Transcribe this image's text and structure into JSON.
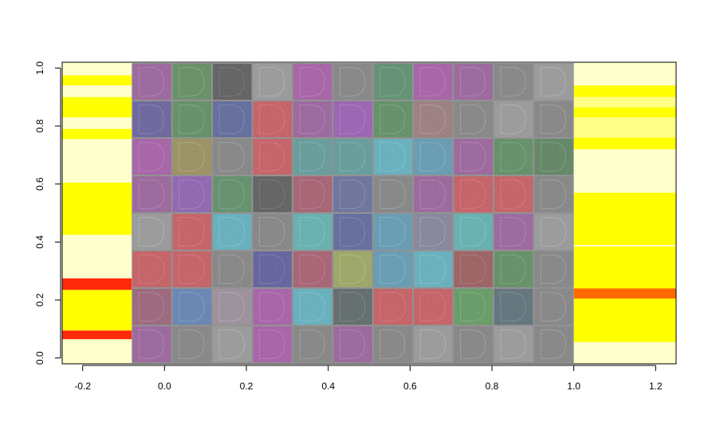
{
  "chart_data": {
    "type": "heatmap",
    "title": "",
    "xlabel": "",
    "ylabel": "",
    "xlim": [
      -0.25,
      1.25
    ],
    "ylim": [
      -0.02,
      1.02
    ],
    "x_ticks": [
      "-0.2",
      "0.0",
      "0.2",
      "0.4",
      "0.6",
      "0.8",
      "1.0",
      "1.2"
    ],
    "y_ticks": [
      "0.0",
      "0.2",
      "0.4",
      "0.6",
      "0.8",
      "1.0"
    ],
    "image": {
      "description_colors": [
        "#7a2a86",
        "#9a1f9a",
        "#c2182a",
        "#1e7a2a",
        "#1f3c8c",
        "#1f8a8a",
        "#2aa6b8",
        "#181818",
        "#888888",
        "#6b6b6b"
      ],
      "rows": 8,
      "cols": 11,
      "tile_colors": [
        [
          "#8a2d8c",
          "#2a7a2a",
          "#181818",
          "#888888",
          "#9a1f9a",
          "#6b6b6b",
          "#1e7a4a",
          "#9a1f9a",
          "#8a2d8c",
          "#6b6b6b",
          "#888888"
        ],
        [
          "#3a2a8c",
          "#1e7a2a",
          "#1f3c8c",
          "#c2182a",
          "#8a2d8c",
          "#8a1faa",
          "#1e7a2a",
          "#8a6060",
          "#6b6b6b",
          "#888888",
          "#6b6b6b"
        ],
        [
          "#9a1f9a",
          "#8a7a1a",
          "#6b6b6b",
          "#c2182a",
          "#2a8a8a",
          "#2a8a8a",
          "#2aa6b8",
          "#2a8aaa",
          "#8a2d8c",
          "#1e7a2a",
          "#1e6a2a"
        ],
        [
          "#8a2d8c",
          "#7a2aa6",
          "#1e7a3a",
          "#181818",
          "#9a1f4a",
          "#3a4a8c",
          "#6b6b6b",
          "#8a2d8c",
          "#c2182a",
          "#c2182a",
          "#6b6b6b"
        ],
        [
          "#888888",
          "#c2182a",
          "#2aa6b8",
          "#6b6b6b",
          "#2aa6a6",
          "#1f3c8c",
          "#2a8aaa",
          "#6b6b8c",
          "#2aa6a6",
          "#8a2d8c",
          "#888888"
        ],
        [
          "#c2182a",
          "#c2182a",
          "#6b6b6b",
          "#1f1f8c",
          "#9a1f4a",
          "#8a9a2a",
          "#2a8aaa",
          "#2aa6b8",
          "#8a1818",
          "#1e7a2a",
          "#6b6b6b"
        ],
        [
          "#8a2d5c",
          "#2a6aaa",
          "#8a7a8a",
          "#9a1f9a",
          "#2aa6b8",
          "#1a3a3a",
          "#c2182a",
          "#c2182a",
          "#2a8a2a",
          "#1a4a5a",
          "#6b6b6b"
        ],
        [
          "#8a2d8c",
          "#6b6b6b",
          "#888888",
          "#9a1f9a",
          "#6b6b6b",
          "#8a2d8c",
          "#6b6b6b",
          "#888888",
          "#6b6b6b",
          "#888888",
          "#6b6b6b"
        ]
      ]
    },
    "left_strip": {
      "x_range": [
        -0.25,
        -0.08
      ],
      "bands": [
        {
          "y0": -0.02,
          "y1": 0.065,
          "color": "#ffffcc"
        },
        {
          "y0": 0.065,
          "y1": 0.095,
          "color": "#ff2a0a"
        },
        {
          "y0": 0.095,
          "y1": 0.235,
          "color": "#ffff00"
        },
        {
          "y0": 0.235,
          "y1": 0.275,
          "color": "#ff2a0a"
        },
        {
          "y0": 0.275,
          "y1": 0.425,
          "color": "#ffffcc"
        },
        {
          "y0": 0.425,
          "y1": 0.605,
          "color": "#ffff00"
        },
        {
          "y0": 0.605,
          "y1": 0.755,
          "color": "#ffffcc"
        },
        {
          "y0": 0.755,
          "y1": 0.79,
          "color": "#ffff00"
        },
        {
          "y0": 0.79,
          "y1": 0.83,
          "color": "#ffffcc"
        },
        {
          "y0": 0.83,
          "y1": 0.9,
          "color": "#ffff00"
        },
        {
          "y0": 0.9,
          "y1": 0.94,
          "color": "#ffffcc"
        },
        {
          "y0": 0.94,
          "y1": 0.975,
          "color": "#ffff00"
        },
        {
          "y0": 0.975,
          "y1": 1.02,
          "color": "#ffffcc"
        }
      ]
    },
    "right_strip": {
      "x_range": [
        1.0,
        1.25
      ],
      "bands": [
        {
          "y0": -0.02,
          "y1": 0.055,
          "color": "#ffffcc"
        },
        {
          "y0": 0.055,
          "y1": 0.205,
          "color": "#ffff00"
        },
        {
          "y0": 0.205,
          "y1": 0.24,
          "color": "#ff6a00"
        },
        {
          "y0": 0.24,
          "y1": 0.385,
          "color": "#ffff00"
        },
        {
          "y0": 0.385,
          "y1": 0.385,
          "color": "#ffff00"
        },
        {
          "y0": 0.385,
          "y1": 0.39,
          "color": "#ffffcc"
        },
        {
          "y0": 0.39,
          "y1": 0.57,
          "color": "#ffff00"
        },
        {
          "y0": 0.57,
          "y1": 0.72,
          "color": "#ffffcc"
        },
        {
          "y0": 0.72,
          "y1": 0.76,
          "color": "#ffff00"
        },
        {
          "y0": 0.76,
          "y1": 0.83,
          "color": "#ffff88"
        },
        {
          "y0": 0.83,
          "y1": 0.865,
          "color": "#ffff00"
        },
        {
          "y0": 0.865,
          "y1": 0.9,
          "color": "#ffff88"
        },
        {
          "y0": 0.9,
          "y1": 0.94,
          "color": "#ffff00"
        },
        {
          "y0": 0.94,
          "y1": 1.02,
          "color": "#ffffcc"
        }
      ]
    },
    "grid": false,
    "legend": "none"
  }
}
